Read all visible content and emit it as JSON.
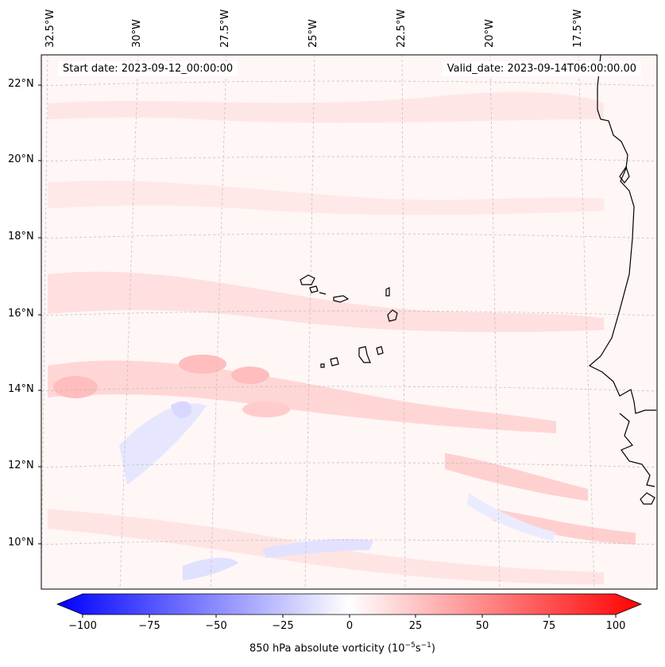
{
  "map": {
    "field": "850 hPa absolute vorticity",
    "start_label": "Start date: 2023-09-12_00:00:00",
    "valid_label": "Valid_date: 2023-09-14T06:00:00.00",
    "lon_labels": [
      "32.5°W",
      "30°W",
      "27.5°W",
      "25°W",
      "22.5°W",
      "20°W",
      "17.5°W"
    ],
    "lat_labels": [
      "22°N",
      "20°N",
      "18°N",
      "16°N",
      "14°N",
      "12°N",
      "10°N"
    ],
    "colorbar": {
      "label_main": "850 hPa absolute vorticity (10",
      "label_exp1": "−5",
      "label_mid": "s",
      "label_exp2": "−1",
      "label_end": ")",
      "ticks": [
        "−100",
        "−75",
        "−50",
        "−25",
        "0",
        "25",
        "50",
        "75",
        "100"
      ],
      "min": -100,
      "max": 100,
      "low_color": "#0000ff",
      "mid_color": "#ffffff",
      "high_color": "#ff0000"
    },
    "colors": {
      "land_outline": "#000000",
      "gridline": "#bbbbbb",
      "background_field": "#fff6f6",
      "positive_light": "#ffdede",
      "positive_mid": "#ffbcbc",
      "negative_light": "#e6e6ff"
    }
  }
}
